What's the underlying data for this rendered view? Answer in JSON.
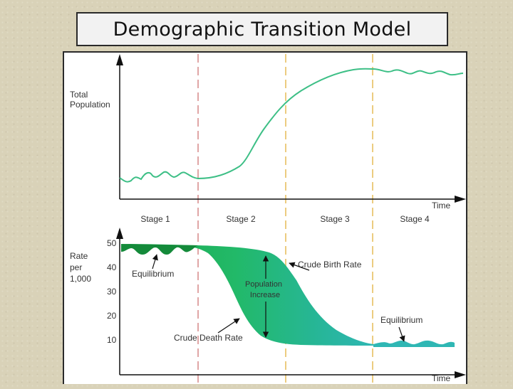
{
  "title": "Demographic Transition Model",
  "top_chart": {
    "ylabel_line1": "Total",
    "ylabel_line2": "Population",
    "xlabel": "Time"
  },
  "stages": [
    "Stage 1",
    "Stage 2",
    "Stage 3",
    "Stage 4"
  ],
  "bottom_chart": {
    "ylabel_line1": "Rate",
    "ylabel_line2": "per",
    "ylabel_line3": "1,000",
    "yticks": [
      "50",
      "40",
      "30",
      "20",
      "10"
    ],
    "xlabel": "Time"
  },
  "annotations": {
    "equilibrium_left": "Equilibrium",
    "equilibrium_right": "Equilibrium",
    "crude_birth_rate": "Crude Birth Rate",
    "crude_death_rate": "Crude Death Rate",
    "population_line1": "Population",
    "population_line2": "Increase"
  },
  "colors": {
    "population_line": "#3dbf86",
    "stage_line_1": "#d99090",
    "stage_line_2": "#e8c060",
    "fill_dark": "#1aa64a",
    "fill_mid": "#22b968",
    "fill_teal": "#2fb7b4"
  }
}
